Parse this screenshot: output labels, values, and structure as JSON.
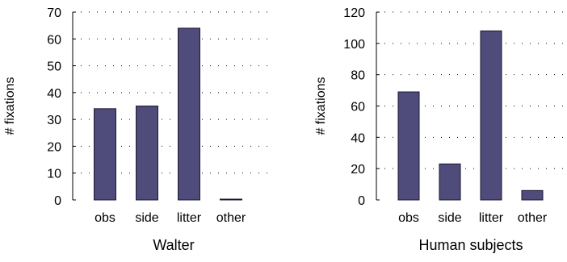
{
  "chart_data": [
    {
      "type": "bar",
      "categories": [
        "obs",
        "side",
        "litter",
        "other"
      ],
      "values": [
        34,
        35,
        64,
        0.3
      ],
      "title": "Walter",
      "xlabel": "",
      "ylabel": "# fixations",
      "ylim": [
        0,
        70
      ],
      "yticks": [
        0,
        10,
        20,
        30,
        40,
        50,
        60,
        70
      ],
      "grid": true,
      "bar_color": "#4f4c7c"
    },
    {
      "type": "bar",
      "categories": [
        "obs",
        "side",
        "litter",
        "other"
      ],
      "values": [
        69,
        23,
        108,
        6
      ],
      "title": "Human subjects",
      "xlabel": "",
      "ylabel": "# fixations",
      "ylim": [
        0,
        120
      ],
      "yticks": [
        0,
        20,
        40,
        60,
        80,
        100,
        120
      ],
      "grid": true,
      "bar_color": "#4f4c7c"
    }
  ]
}
